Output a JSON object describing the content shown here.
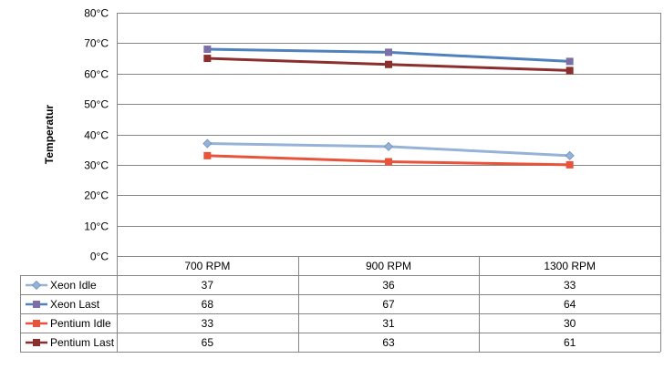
{
  "chart_data": {
    "type": "line",
    "title": "",
    "xlabel": "",
    "ylabel": "Temperatur",
    "categories": [
      "700 RPM",
      "900 RPM",
      "1300 RPM"
    ],
    "ylim": [
      0,
      80
    ],
    "yticks": [
      "0°C",
      "10°C",
      "20°C",
      "30°C",
      "40°C",
      "50°C",
      "60°C",
      "70°C",
      "80°C"
    ],
    "grid": true,
    "legend": "data-table",
    "series": [
      {
        "name": "Xeon Idle",
        "values": [
          37,
          36,
          33
        ],
        "color": "#95B3D7",
        "marker": "diamond"
      },
      {
        "name": "Xeon Last",
        "values": [
          68,
          67,
          64
        ],
        "color": "#4F81BD",
        "marker": "square"
      },
      {
        "name": "Pentium Idle",
        "values": [
          33,
          31,
          30
        ],
        "color": "#E8533B",
        "marker": "square"
      },
      {
        "name": "Pentium Last",
        "values": [
          65,
          63,
          61
        ],
        "color": "#8B2E2E",
        "marker": "square"
      }
    ]
  }
}
